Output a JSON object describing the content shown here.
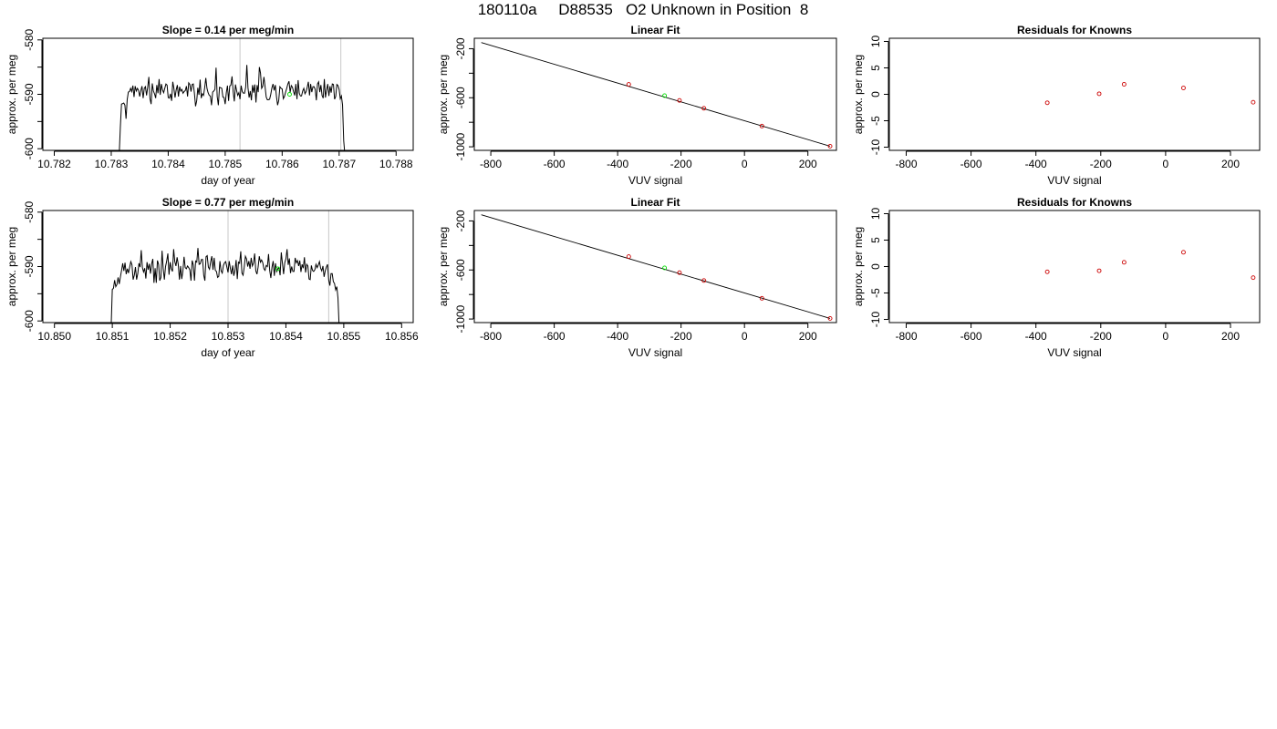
{
  "header": {
    "title": "180110a     D88535   O2 Unknown in Position  8"
  },
  "chart_data": [
    {
      "type": "line",
      "title": "Slope =  0.14  per meg/min",
      "xlabel": "day of year",
      "ylabel": "approx. per meg",
      "xlim": [
        10.7818,
        10.7883
      ],
      "ylim": [
        -600.3,
        -579.7
      ],
      "xticks": [
        10.782,
        10.783,
        10.784,
        10.785,
        10.786,
        10.787,
        10.788
      ],
      "xtick_labels": [
        "10.782",
        "10.783",
        "10.784",
        "10.785",
        "10.786",
        "10.787",
        "10.788"
      ],
      "yticks": [
        -600,
        -595,
        -590,
        -585,
        -580
      ],
      "ytick_labels": [
        "-600",
        "",
        "-590",
        "",
        "-580"
      ],
      "vlines": [
        10.78526,
        10.78703
      ],
      "series": [
        {
          "color": "#000000",
          "x_start": 10.78314,
          "x_step": 2e-05,
          "y": [
            -601.0,
            -596.0,
            -591.8,
            -591.7,
            -591.6,
            -592.0,
            -594.5,
            -591.0,
            -589.6,
            -589.5,
            -588.9,
            -589.5,
            -588.4,
            -590.5,
            -588.5,
            -589.4,
            -588.9,
            -589.3,
            -590.4,
            -589.3,
            -588.5,
            -590.7,
            -588.9,
            -588.6,
            -590.2,
            -588.7,
            -586.8,
            -590.8,
            -591.8,
            -588.0,
            -589.4,
            -589.9,
            -590.7,
            -588.3,
            -589.8,
            -587.2,
            -590.1,
            -588.1,
            -589.2,
            -589.7,
            -588.9,
            -588.1,
            -588.3,
            -590.6,
            -590.7,
            -589.9,
            -591.2,
            -587.7,
            -588.9,
            -590.6,
            -589.2,
            -588.3,
            -590.4,
            -588.6,
            -589.4,
            -589.1,
            -589.8,
            -589.5,
            -589.3,
            -588.5,
            -590.4,
            -587.9,
            -588.2,
            -589.5,
            -588.2,
            -588.1,
            -589.8,
            -592.2,
            -591.2,
            -588.8,
            -590.1,
            -587.3,
            -590.7,
            -589.9,
            -590.2,
            -588.8,
            -587.0,
            -588.9,
            -589.7,
            -590.2,
            -590.3,
            -592.0,
            -589.6,
            -589.4,
            -589.1,
            -585.1,
            -590.4,
            -592.0,
            -588.7,
            -588.8,
            -588.9,
            -590.5,
            -590.6,
            -591.8,
            -589.7,
            -588.4,
            -591.2,
            -588.5,
            -588.3,
            -586.7,
            -589.5,
            -591.3,
            -588.2,
            -589.3,
            -590.2,
            -589.7,
            -590.9,
            -588.4,
            -589.5,
            -589.8,
            -589.8,
            -588.7,
            -584.6,
            -588.8,
            -590.6,
            -589.4,
            -591.1,
            -588.3,
            -589.7,
            -588.2,
            -591.5,
            -588.3,
            -589.6,
            -585.0,
            -586.1,
            -588.9,
            -588.5,
            -586.8,
            -588.6,
            -590.5,
            -591.0,
            -591.0,
            -590.9,
            -590.0,
            -588.8,
            -588.1,
            -589.3,
            -588.3,
            -590.4,
            -592.0,
            -591.1,
            -588.6,
            -588.9,
            -589.0,
            -590.8,
            -590.4,
            -589.6,
            -588.9,
            -588.1,
            -587.6,
            -589.6,
            -588.4,
            -588.7,
            -589.5,
            -590.2,
            -588.1,
            -590.9,
            -587.4,
            -589.8,
            -590.3,
            -590.3,
            -589.4,
            -588.9,
            -589.9,
            -589.5,
            -588.7,
            -587.7,
            -590.2,
            -588.1,
            -589.6,
            -588.6,
            -588.6,
            -589.1,
            -591.1,
            -588.1,
            -587.7,
            -589.6,
            -588.3,
            -590.2,
            -590.7,
            -587.2,
            -590.6,
            -589.2,
            -588.1,
            -590.3,
            -588.5,
            -589.7,
            -588.1,
            -588.2,
            -590.9,
            -590.4,
            -588.2,
            -588.4,
            -589.1,
            -590.8,
            -590.3,
            -592.0,
            -598.5,
            -601.0
          ]
        }
      ],
      "highlight_points": [
        {
          "x": 10.78613,
          "y": -590.0,
          "color": "#00dd00"
        }
      ]
    },
    {
      "type": "scatter",
      "title": "Linear Fit",
      "xlabel": "VUV signal",
      "ylabel": "approx. per meg",
      "xlim": [
        -852,
        290
      ],
      "ylim": [
        -1029,
        -115
      ],
      "xticks": [
        -800,
        -600,
        -400,
        -200,
        0,
        200
      ],
      "xtick_labels": [
        "-800",
        "-600",
        "-400",
        "-200",
        "0",
        "200"
      ],
      "yticks": [
        -1000,
        -800,
        -600,
        -400,
        -200
      ],
      "ytick_labels": [
        "-1000",
        "",
        "-600",
        "",
        "-200"
      ],
      "fit_line": {
        "x": [
          -830,
          270
        ],
        "y": [
          -150,
          -995
        ],
        "color": "#000000"
      },
      "series": [
        {
          "color": "#cc0000",
          "points": [
            {
              "x": -365,
              "y": -491
            },
            {
              "x": -205,
              "y": -622
            },
            {
              "x": -128,
              "y": -686
            },
            {
              "x": 55,
              "y": -831
            },
            {
              "x": 270,
              "y": -995
            }
          ]
        },
        {
          "color": "#00dd00",
          "points": [
            {
              "x": -252,
              "y": -583
            }
          ]
        }
      ]
    },
    {
      "type": "scatter",
      "title": "Residuals for Knowns",
      "xlabel": "VUV signal",
      "ylabel": "approx. per meg",
      "xlim": [
        -852,
        290
      ],
      "ylim": [
        -10.6,
        10.6
      ],
      "xticks": [
        -800,
        -600,
        -400,
        -200,
        0,
        200
      ],
      "xtick_labels": [
        "-800",
        "-600",
        "-400",
        "-200",
        "0",
        "200"
      ],
      "yticks": [
        -10,
        -5,
        0,
        5,
        10
      ],
      "ytick_labels": [
        "-10",
        "-5",
        "0",
        "5",
        "10"
      ],
      "series": [
        {
          "color": "#cc0000",
          "points": [
            {
              "x": -365,
              "y": -1.6
            },
            {
              "x": -205,
              "y": 0.1
            },
            {
              "x": -128,
              "y": 1.9
            },
            {
              "x": 55,
              "y": 1.2
            },
            {
              "x": 270,
              "y": -1.5
            }
          ]
        }
      ]
    },
    {
      "type": "line",
      "title": "Slope =  0.77  per meg/min",
      "xlabel": "day of year",
      "ylabel": "approx. per meg",
      "xlim": [
        10.8498,
        10.8562
      ],
      "ylim": [
        -600.3,
        -579.7
      ],
      "xticks": [
        10.85,
        10.851,
        10.852,
        10.853,
        10.854,
        10.855,
        10.856
      ],
      "xtick_labels": [
        "10.850",
        "10.851",
        "10.852",
        "10.853",
        "10.854",
        "10.855",
        "10.856"
      ],
      "yticks": [
        -600,
        -595,
        -590,
        -585,
        -580
      ],
      "ytick_labels": [
        "-600",
        "",
        "-590",
        "",
        "-580"
      ],
      "vlines": [
        10.853,
        10.85474
      ],
      "series": [
        {
          "color": "#000000",
          "x_start": 10.85098,
          "x_step": 2e-05,
          "y": [
            -601.0,
            -594.2,
            -594.0,
            -592.5,
            -593.7,
            -593.3,
            -592.0,
            -593.2,
            -591.9,
            -590.7,
            -589.4,
            -590.8,
            -589.3,
            -591.4,
            -590.4,
            -591.2,
            -590.1,
            -589.1,
            -589.7,
            -592.4,
            -591.6,
            -590.1,
            -592.4,
            -591.3,
            -589.4,
            -590.1,
            -587.0,
            -590.2,
            -591.0,
            -590.3,
            -592.2,
            -589.2,
            -590.6,
            -589.5,
            -591.3,
            -589.5,
            -588.6,
            -593.0,
            -590.3,
            -593.0,
            -588.9,
            -589.6,
            -592.6,
            -592.0,
            -587.1,
            -590.4,
            -592.4,
            -590.0,
            -589.0,
            -587.6,
            -591.5,
            -589.2,
            -590.4,
            -590.9,
            -586.8,
            -589.1,
            -589.9,
            -588.3,
            -589.6,
            -592.4,
            -589.9,
            -592.3,
            -590.8,
            -588.2,
            -590.2,
            -590.4,
            -589.9,
            -590.2,
            -590.6,
            -592.6,
            -588.9,
            -589.7,
            -592.6,
            -589.0,
            -589.2,
            -586.6,
            -589.6,
            -589.5,
            -588.7,
            -588.7,
            -591.6,
            -592.6,
            -588.2,
            -588.0,
            -590.1,
            -590.5,
            -589.1,
            -588.1,
            -590.6,
            -588.4,
            -590.7,
            -590.9,
            -592.0,
            -591.8,
            -589.0,
            -590.8,
            -591.2,
            -589.8,
            -589.3,
            -589.1,
            -590.1,
            -591.1,
            -589.0,
            -590.3,
            -591.4,
            -589.8,
            -591.7,
            -590.7,
            -588.8,
            -592.3,
            -589.2,
            -589.4,
            -587.2,
            -591.2,
            -591.6,
            -590.1,
            -588.1,
            -588.6,
            -590.0,
            -589.0,
            -590.4,
            -588.4,
            -589.9,
            -589.4,
            -587.6,
            -590.8,
            -591.4,
            -590.1,
            -588.1,
            -589.2,
            -588.8,
            -589.3,
            -590.4,
            -590.7,
            -589.8,
            -590.0,
            -587.7,
            -590.7,
            -592.1,
            -590.1,
            -589.0,
            -591.7,
            -589.4,
            -590.9,
            -590.4,
            -590.2,
            -591.6,
            -587.4,
            -589.4,
            -591.4,
            -589.3,
            -588.6,
            -586.8,
            -589.7,
            -588.5,
            -591.2,
            -590.0,
            -590.9,
            -590.9,
            -588.4,
            -589.3,
            -588.9,
            -589.9,
            -588.9,
            -591.0,
            -589.6,
            -590.3,
            -588.3,
            -591.1,
            -589.6,
            -589.9,
            -592.3,
            -592.4,
            -589.8,
            -590.7,
            -590.9,
            -590.6,
            -589.6,
            -590.2,
            -589.7,
            -589.1,
            -590.3,
            -590.8,
            -589.9,
            -591.9,
            -590.8,
            -590.1,
            -589.6,
            -592.5,
            -593.5,
            -591.3,
            -591.3,
            -592.8,
            -593.1,
            -594.3,
            -593.7,
            -595.8,
            -601.0
          ]
        }
      ],
      "highlight_points": [
        {
          "x": 10.85386,
          "y": -590.4,
          "color": "#00dd00"
        }
      ]
    },
    {
      "type": "scatter",
      "title": "Linear Fit",
      "xlabel": "VUV signal",
      "ylabel": "approx. per meg",
      "xlim": [
        -852,
        290
      ],
      "ylim": [
        -1029,
        -115
      ],
      "xticks": [
        -800,
        -600,
        -400,
        -200,
        0,
        200
      ],
      "xtick_labels": [
        "-800",
        "-600",
        "-400",
        "-200",
        "0",
        "200"
      ],
      "yticks": [
        -1000,
        -800,
        -600,
        -400,
        -200
      ],
      "ytick_labels": [
        "-1000",
        "",
        "-600",
        "",
        "-200"
      ],
      "fit_line": {
        "x": [
          -830,
          270
        ],
        "y": [
          -150,
          -995
        ],
        "color": "#000000"
      },
      "series": [
        {
          "color": "#cc0000",
          "points": [
            {
              "x": -365,
              "y": -491
            },
            {
              "x": -205,
              "y": -622
            },
            {
              "x": -128,
              "y": -686
            },
            {
              "x": 55,
              "y": -831
            },
            {
              "x": 270,
              "y": -995
            }
          ]
        },
        {
          "color": "#00dd00",
          "points": [
            {
              "x": -252,
              "y": -583
            }
          ]
        }
      ]
    },
    {
      "type": "scatter",
      "title": "Residuals for Knowns",
      "xlabel": "VUV signal",
      "ylabel": "approx. per meg",
      "xlim": [
        -852,
        290
      ],
      "ylim": [
        -10.6,
        10.6
      ],
      "xticks": [
        -800,
        -600,
        -400,
        -200,
        0,
        200
      ],
      "xtick_labels": [
        "-800",
        "-600",
        "-400",
        "-200",
        "0",
        "200"
      ],
      "yticks": [
        -10,
        -5,
        0,
        5,
        10
      ],
      "ytick_labels": [
        "-10",
        "-5",
        "0",
        "5",
        "10"
      ],
      "series": [
        {
          "color": "#cc0000",
          "points": [
            {
              "x": -365,
              "y": -1.0
            },
            {
              "x": -205,
              "y": -0.8
            },
            {
              "x": -128,
              "y": 0.8
            },
            {
              "x": 55,
              "y": 2.7
            },
            {
              "x": 270,
              "y": -2.1
            }
          ]
        }
      ]
    }
  ]
}
